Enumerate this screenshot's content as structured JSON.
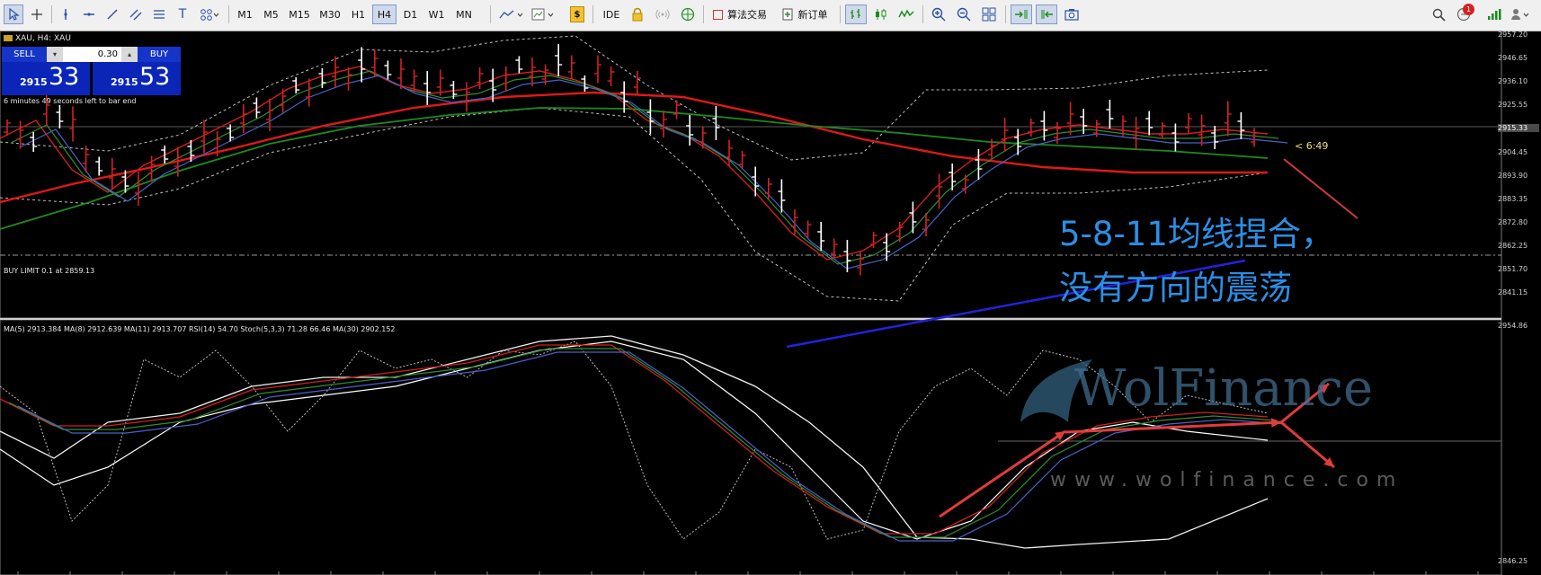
{
  "toolbar": {
    "timeframes": [
      "M1",
      "M5",
      "M15",
      "M30",
      "H1",
      "H4",
      "D1",
      "W1",
      "MN"
    ],
    "active_timeframe": "H4",
    "ide_label": "IDE",
    "algo_label": "算法交易",
    "new_order_label": "新订单",
    "notifications_count": "1"
  },
  "chart": {
    "symbol_title": "XAU, H4:  XAU",
    "countdown": "6 minutes 49 seconds left to bar end",
    "pending_order": "BUY LIMIT 0.1 at 2859.13",
    "bar_timer": "< 6:49",
    "current_price_tag": "2915.33",
    "price_scale": [
      "2957.20",
      "2946.65",
      "2936.10",
      "2925.55",
      "2915.33",
      "2904.45",
      "2893.90",
      "2883.35",
      "2872.80",
      "2862.25",
      "2851.70",
      "2841.15"
    ],
    "indicator_title": "MA(5) 2913.384 MA(8) 2912.639 MA(11) 2913.707 RSI(14) 54.70 Stoch(5,3,3) 71.28 66.46 MA(30) 2902.152",
    "indicator_scale": [
      "2954.86",
      "2846.25"
    ],
    "colors": {
      "ma5": "#d21f1f",
      "ma8": "#2f8f2f",
      "ma11": "#4a62c8",
      "ma_long": "#e01818",
      "ma_green": "#1f8a1f",
      "bollinger": "#bfbfbf",
      "trendline": "#2222dd",
      "annotation": "#2b8fe6"
    }
  },
  "trade_panel": {
    "sell_label": "SELL",
    "buy_label": "BUY",
    "volume": "0.30",
    "sell_price_small": "2915",
    "sell_price_big": "33",
    "buy_price_small": "2915",
    "buy_price_big": "53"
  },
  "annotation": {
    "line1": "5-8-11均线捏合，",
    "line2": "没有方向的震荡"
  },
  "watermark": {
    "brand": "WolFinance",
    "url": "www.wolfinance.com"
  }
}
